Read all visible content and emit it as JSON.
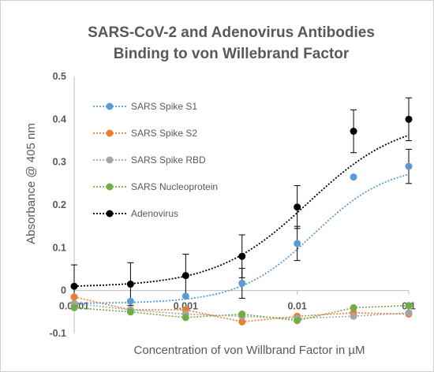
{
  "chart_data": {
    "type": "scatter",
    "title_line1": "SARS-CoV-2 and Adenovirus Antibodies",
    "title_line2": "Binding to von Willebrand Factor",
    "xlabel": "Concentration of von Willbrand Factor in µM",
    "ylabel": "Absorbance @ 405 nm",
    "x_scale": "log",
    "xlim": [
      0.0001,
      0.1
    ],
    "ylim": [
      -0.1,
      0.5
    ],
    "x_ticks": [
      {
        "value": 0.0001,
        "label": "0.0001"
      },
      {
        "value": 0.001,
        "label": "0.001"
      },
      {
        "value": 0.01,
        "label": "0.01"
      },
      {
        "value": 0.1,
        "label": "0.1"
      }
    ],
    "y_ticks": [
      {
        "value": -0.1,
        "label": "-0.1"
      },
      {
        "value": 0,
        "label": "0"
      },
      {
        "value": 0.1,
        "label": "0.1"
      },
      {
        "value": 0.2,
        "label": "0.2"
      },
      {
        "value": 0.3,
        "label": "0.3"
      },
      {
        "value": 0.4,
        "label": "0.4"
      },
      {
        "value": 0.5,
        "label": "0.5"
      }
    ],
    "grid": false,
    "legend_position": "left-inside",
    "x": [
      0.0001,
      0.00032,
      0.001,
      0.0032,
      0.01,
      0.032,
      0.1
    ],
    "series": [
      {
        "name": "SARS Spike S1",
        "color": "#5b9bd5",
        "values": [
          -0.03,
          -0.025,
          -0.013,
          0.017,
          0.11,
          0.265,
          0.29
        ],
        "errors": [
          0,
          0,
          0,
          0.035,
          0.04,
          0,
          0.04
        ]
      },
      {
        "name": "SARS Spike S2",
        "color": "#ed7d31",
        "values": [
          -0.015,
          -0.045,
          -0.045,
          -0.073,
          -0.06,
          -0.052,
          -0.055
        ],
        "errors": [
          0,
          0,
          0,
          0,
          0,
          0,
          0
        ]
      },
      {
        "name": "SARS Spike RBD",
        "color": "#a5a5a5",
        "values": [
          -0.03,
          -0.045,
          -0.055,
          -0.06,
          -0.065,
          -0.06,
          -0.052
        ],
        "errors": [
          0,
          0,
          0,
          0,
          0,
          0,
          0
        ]
      },
      {
        "name": "SARS Nucleoprotein",
        "color": "#70ad47",
        "values": [
          -0.04,
          -0.05,
          -0.063,
          -0.055,
          -0.07,
          -0.04,
          -0.035
        ],
        "errors": [
          0,
          0,
          0,
          0,
          0,
          0,
          0
        ]
      },
      {
        "name": "Adenovirus",
        "color": "#000000",
        "values": [
          0.01,
          0.015,
          0.035,
          0.08,
          0.195,
          0.372,
          0.4
        ],
        "errors": [
          0.05,
          0.05,
          0.05,
          0.05,
          0.05,
          0.05,
          0.05
        ]
      }
    ],
    "fits": [
      {
        "series": "SARS Spike S1",
        "bottom": -0.03,
        "top": 0.295,
        "logEC50": -1.85,
        "hill": 1.3
      },
      {
        "series": "Adenovirus",
        "bottom": 0.008,
        "top": 0.403,
        "logEC50": -1.9,
        "hill": 1.05
      }
    ]
  }
}
